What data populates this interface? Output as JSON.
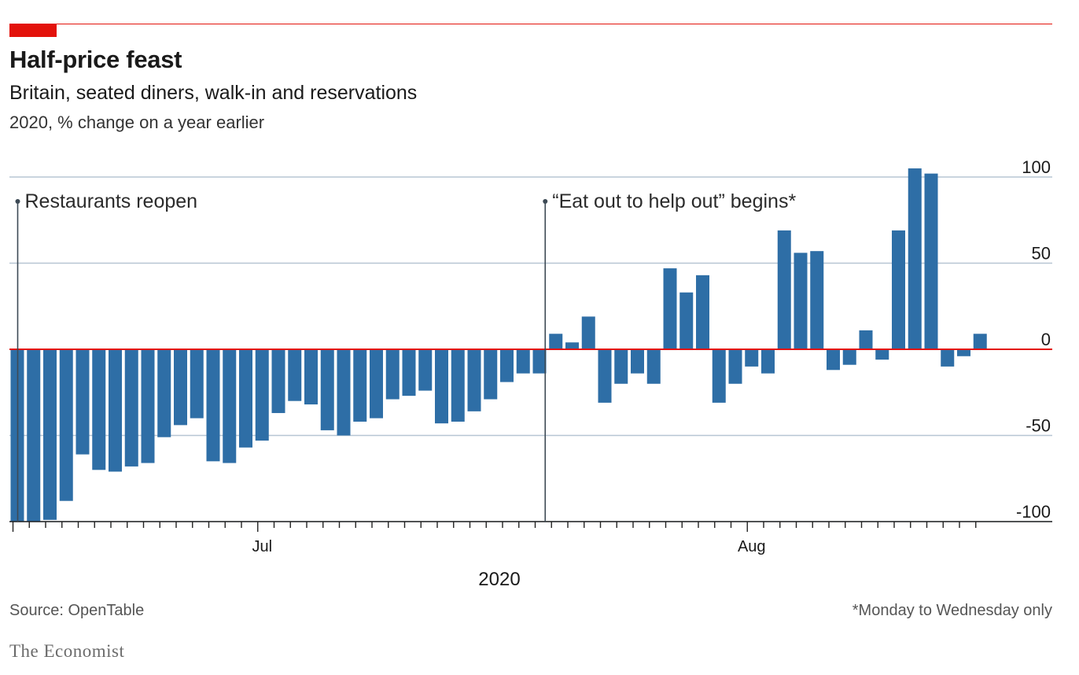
{
  "header": {
    "title": "Half-price feast",
    "subtitle": "Britain, seated diners, walk-in and reservations",
    "unit": "2020, % change on a year earlier"
  },
  "footer": {
    "source": "Source: OpenTable",
    "footnote": "*Monday to Wednesday only",
    "brand": "The Economist"
  },
  "colors": {
    "bar": "#2e6ea6",
    "zero_line": "#e3120b",
    "grid": "#b7c6d3",
    "annotation": "#3d4a55",
    "text": "#1a1a1a"
  },
  "chart_data": {
    "type": "bar",
    "title": "Half-price feast",
    "subtitle": "Britain, seated diners, walk-in and reservations",
    "ylabel": "2020, % change on a year earlier",
    "xlabel": "2020",
    "ylim": [
      -100,
      100
    ],
    "yticks": [
      100,
      50,
      0,
      -50,
      -100
    ],
    "y_axis_side": "right",
    "grid": true,
    "x_month_labels": [
      {
        "label": "Jul",
        "index": 15
      },
      {
        "label": "Aug",
        "index": 45
      }
    ],
    "annotations": [
      {
        "text": "Restaurants reopen",
        "index": 0
      },
      {
        "text": "“Eat out to help out” begins*",
        "index": 33
      }
    ],
    "values": [
      -100,
      -100,
      -99,
      -88,
      -61,
      -70,
      -71,
      -68,
      -66,
      -51,
      -44,
      -40,
      -65,
      -66,
      -57,
      -53,
      -37,
      -30,
      -32,
      -47,
      -50,
      -42,
      -40,
      -29,
      -27,
      -24,
      -43,
      -42,
      -36,
      -29,
      -19,
      -14,
      -14,
      9,
      4,
      19,
      -31,
      -20,
      -14,
      -20,
      47,
      33,
      43,
      -31,
      -20,
      -10,
      -14,
      69,
      56,
      57,
      -12,
      -9,
      11,
      -6,
      69,
      105,
      102,
      -10,
      -4,
      9
    ]
  }
}
